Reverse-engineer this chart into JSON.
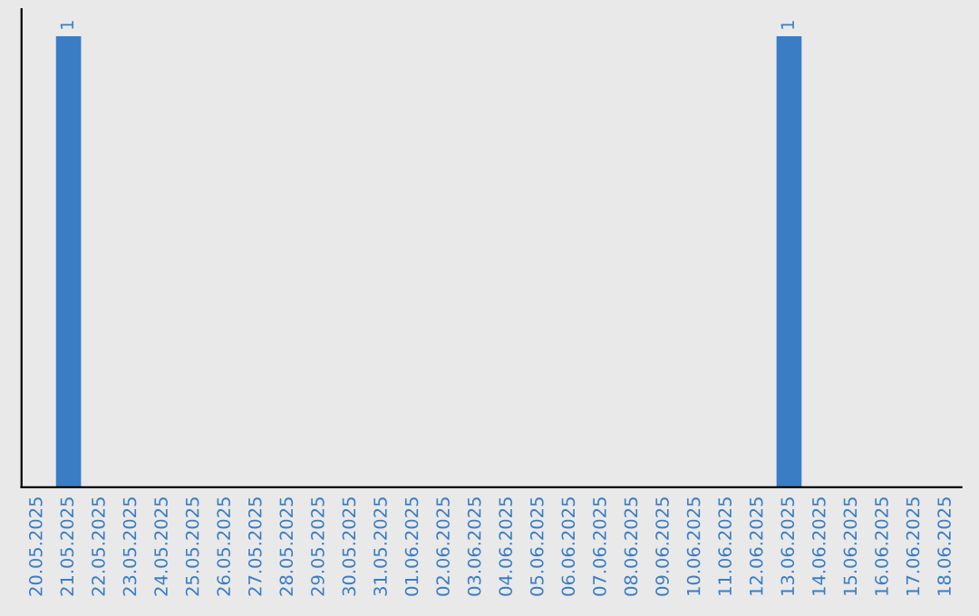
{
  "chart_data": {
    "type": "bar",
    "categories": [
      "20.05.2025",
      "21.05.2025",
      "22.05.2025",
      "23.05.2025",
      "24.05.2025",
      "25.05.2025",
      "26.05.2025",
      "27.05.2025",
      "28.05.2025",
      "29.05.2025",
      "30.05.2025",
      "31.05.2025",
      "01.06.2025",
      "02.06.2025",
      "03.06.2025",
      "04.06.2025",
      "05.06.2025",
      "06.06.2025",
      "07.06.2025",
      "08.06.2025",
      "09.06.2025",
      "10.06.2025",
      "11.06.2025",
      "12.06.2025",
      "13.06.2025",
      "14.06.2025",
      "15.06.2025",
      "16.06.2025",
      "17.06.2025",
      "18.06.2025"
    ],
    "values": [
      0,
      1,
      0,
      0,
      0,
      0,
      0,
      0,
      0,
      0,
      0,
      0,
      0,
      0,
      0,
      0,
      0,
      0,
      0,
      0,
      0,
      0,
      0,
      0,
      1,
      0,
      0,
      0,
      0,
      0
    ],
    "value_labels": [
      null,
      "1",
      null,
      null,
      null,
      null,
      null,
      null,
      null,
      null,
      null,
      null,
      null,
      null,
      null,
      null,
      null,
      null,
      null,
      null,
      null,
      null,
      null,
      null,
      "1",
      null,
      null,
      null,
      null,
      null
    ],
    "color": "#3a7dc4",
    "tick_labels": "x",
    "grid": false,
    "legend": false
  }
}
